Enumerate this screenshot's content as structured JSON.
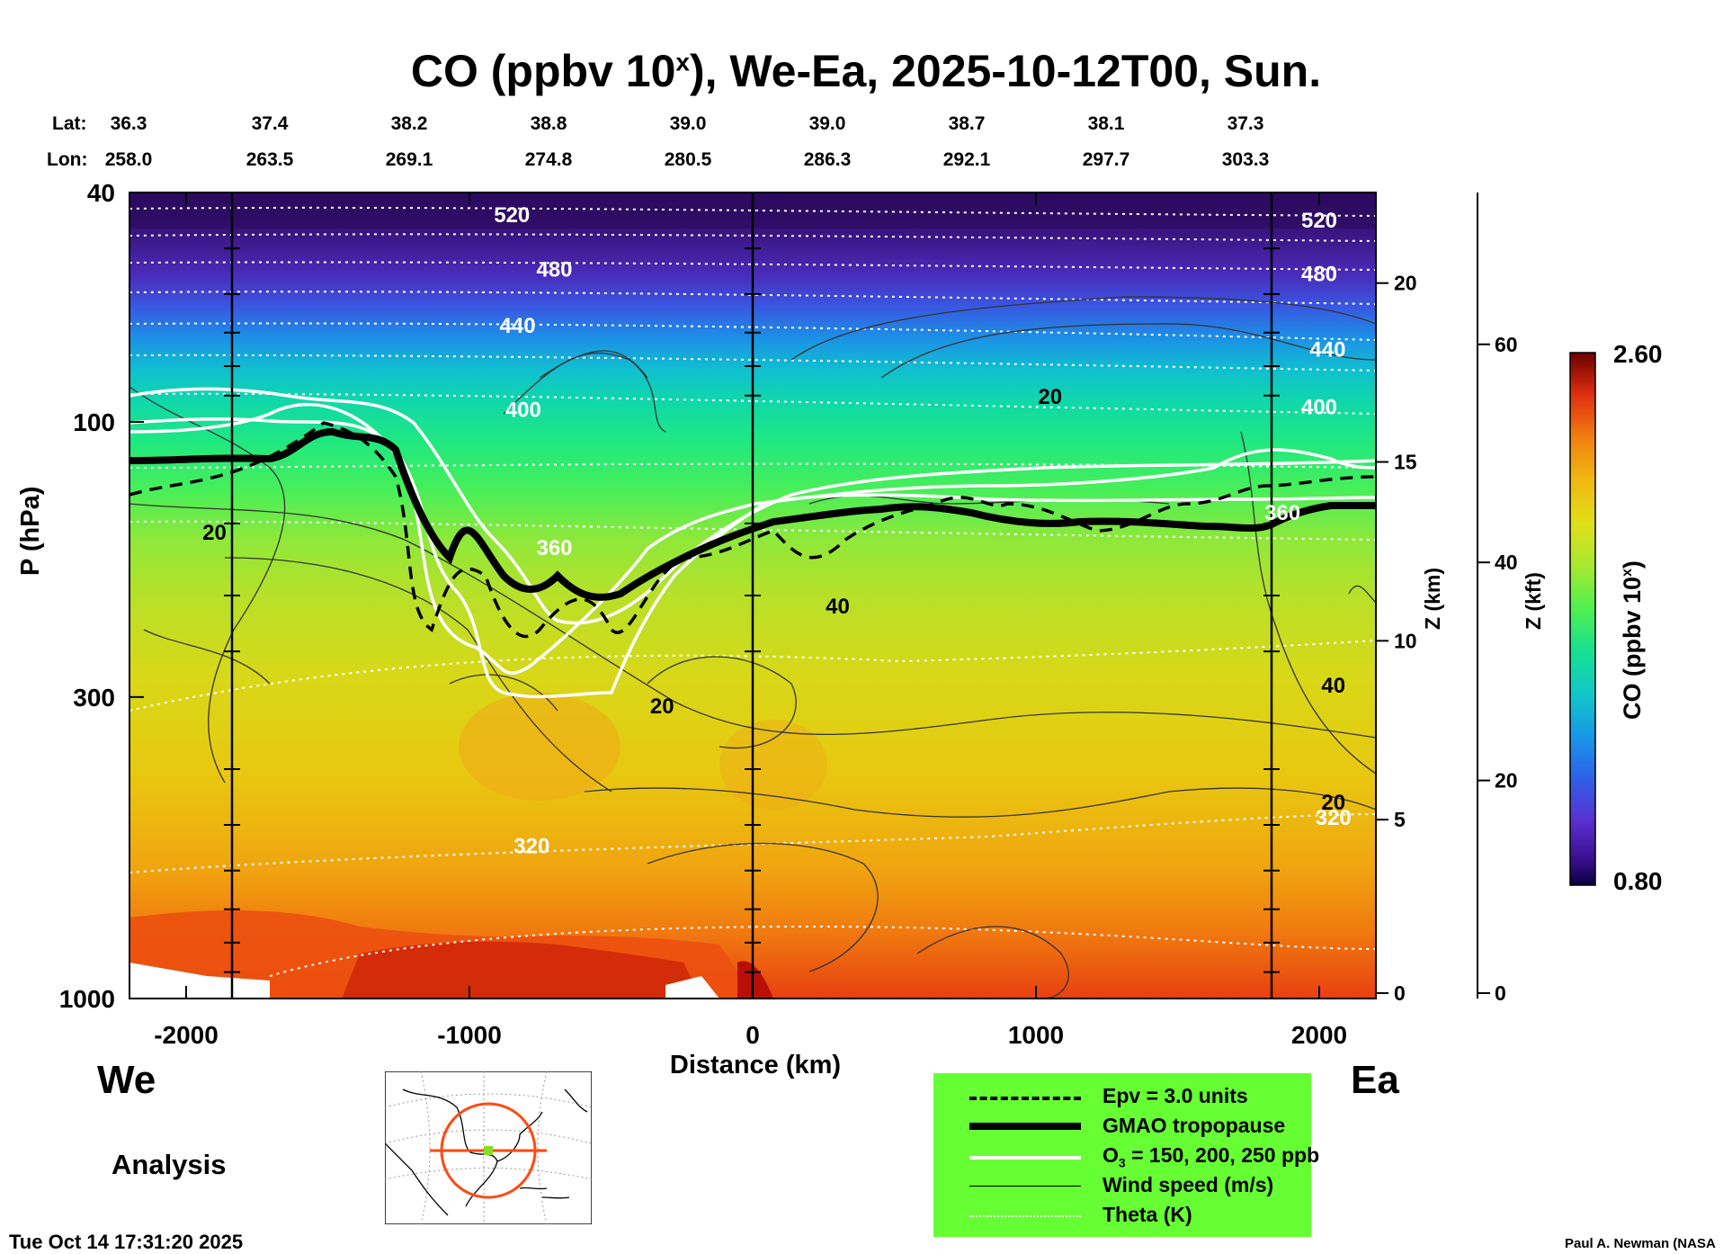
{
  "title": {
    "main": "CO (ppbv 10",
    "sup": "x",
    "rest": "), We-Ea, 2025-10-12T00, Sun."
  },
  "lat_label": "Lat:",
  "lon_label": "Lon:",
  "lats": [
    "36.3",
    "37.4",
    "38.2",
    "38.8",
    "39.0",
    "39.0",
    "38.7",
    "38.1",
    "37.3"
  ],
  "lons": [
    "258.0",
    "263.5",
    "269.1",
    "274.8",
    "280.5",
    "286.3",
    "292.1",
    "297.7",
    "303.3"
  ],
  "y_axis_label": "P (hPa)",
  "x_axis_label": "Distance (km)",
  "z_km_label": "Z (km)",
  "z_kft_label": "Z (kft)",
  "colorbar_label": "CO (ppbv 10",
  "colorbar_label_sup": "x",
  "colorbar_label_end": ")",
  "colorbar_max": "2.60",
  "colorbar_min": "0.80",
  "left_end": "We",
  "right_end": "Ea",
  "analysis": "Analysis",
  "timestamp": "Tue Oct 14 17:31:20 2025",
  "credit": "Paul A. Newman (NASA",
  "legend": [
    {
      "label": "Epv = 3.0 units",
      "style": "dashed"
    },
    {
      "label": "GMAO tropopause",
      "style": "thick"
    },
    {
      "label": "O",
      "sub": "3",
      "rest": " = 150, 200, 250 ppb",
      "style": "white"
    },
    {
      "label": "Wind speed (m/s)",
      "style": "thin"
    },
    {
      "label": "Theta (K)",
      "style": "dotted"
    }
  ],
  "colors": {
    "legend_bg": "#66ff33",
    "co_low": "#0a0040",
    "co_high": "#6b0000"
  },
  "chart_data": {
    "type": "heatmap",
    "x_axis": {
      "label": "Distance (km)",
      "range": [
        -2200,
        2200
      ],
      "ticks": [
        -2000,
        -1000,
        0,
        1000,
        2000
      ],
      "tick_labels": [
        "-2000",
        "-1000",
        "0",
        "1000",
        "2000"
      ]
    },
    "y_axis": {
      "label": "P (hPa)",
      "scale": "log",
      "range": [
        1000,
        40
      ],
      "ticks": [
        1000,
        300,
        100,
        40
      ],
      "tick_labels": [
        "1000",
        "300",
        "100",
        "40"
      ]
    },
    "z_km_axis": {
      "label": "Z (km)",
      "ticks": [
        0,
        5,
        10,
        15,
        20
      ],
      "tick_labels": [
        "0",
        "5",
        "10",
        "15",
        "20"
      ]
    },
    "z_kft_axis": {
      "label": "Z (kft)",
      "ticks": [
        0,
        20,
        40,
        60
      ],
      "tick_labels": [
        "0",
        "20",
        "40",
        "60"
      ]
    },
    "colorbar": {
      "min": 0.8,
      "max": 2.6
    },
    "theta_labels": [
      {
        "text": "520",
        "x": -850,
        "p": 45
      },
      {
        "text": "480",
        "x": -700,
        "p": 56
      },
      {
        "text": "440",
        "x": -830,
        "p": 70
      },
      {
        "text": "400",
        "x": -810,
        "p": 98
      },
      {
        "text": "360",
        "x": -700,
        "p": 170
      },
      {
        "text": "320",
        "x": -780,
        "p": 560
      },
      {
        "text": "520",
        "x": 2000,
        "p": 46
      },
      {
        "text": "480",
        "x": 2000,
        "p": 57
      },
      {
        "text": "440",
        "x": 2030,
        "p": 77
      },
      {
        "text": "400",
        "x": 2000,
        "p": 97
      },
      {
        "text": "360",
        "x": 1870,
        "p": 148
      },
      {
        "text": "320",
        "x": 2050,
        "p": 500
      }
    ],
    "wind_labels": [
      {
        "text": "20",
        "x": 1050,
        "p": 93
      },
      {
        "text": "20",
        "x": -1900,
        "p": 160
      },
      {
        "text": "40",
        "x": 300,
        "p": 215
      },
      {
        "text": "20",
        "x": -320,
        "p": 320
      },
      {
        "text": "40",
        "x": 2050,
        "p": 295
      },
      {
        "text": "20",
        "x": 2050,
        "p": 470
      }
    ]
  }
}
